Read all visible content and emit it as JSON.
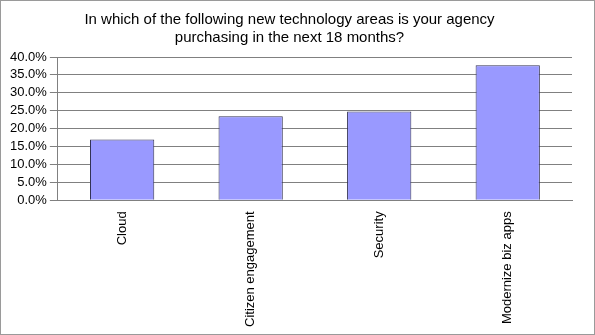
{
  "chart_data": {
    "type": "bar",
    "title": [
      "In which of the following new technology areas is your agency",
      "purchasing in the next 18 months?"
    ],
    "categories": [
      "Cloud",
      "Citizen engagement",
      "Security",
      "Modernize biz apps"
    ],
    "values": [
      17.0,
      23.5,
      24.8,
      37.7
    ],
    "color": "#9999ff",
    "ylim": [
      0,
      40
    ],
    "yticks": [
      {
        "value": 0,
        "label": "0.0%"
      },
      {
        "value": 5,
        "label": "5.0%"
      },
      {
        "value": 10,
        "label": "10.0%"
      },
      {
        "value": 15,
        "label": "15.0%"
      },
      {
        "value": 20,
        "label": "20.0%"
      },
      {
        "value": 25,
        "label": "25.0%"
      },
      {
        "value": 30,
        "label": "30.0%"
      },
      {
        "value": 35,
        "label": "35.0%"
      },
      {
        "value": 40,
        "label": "40.0%"
      }
    ],
    "grid": true
  }
}
